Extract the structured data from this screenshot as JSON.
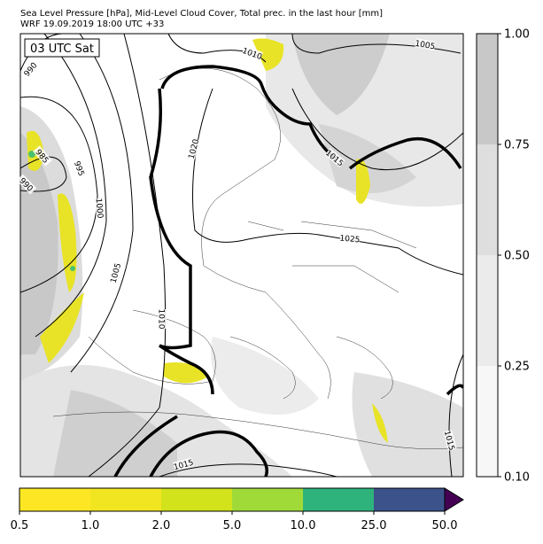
{
  "header": {
    "line1": "Sea Level Pressure [hPa], Mid-Level Cloud Cover, Total prec. in the last hour [mm]",
    "line2": "WRF 19.09.2019 18:00 UTC +33"
  },
  "map": {
    "time_label": "03 UTC Sat",
    "isobar_labels": [
      "990",
      "985",
      "995",
      "990",
      "1000",
      "1005",
      "1010",
      "1010",
      "1020",
      "1015",
      "1025",
      "1005",
      "1015",
      "1015"
    ]
  },
  "cloud_colorbar": {
    "ticks": [
      {
        "value": 0.1,
        "label": "0.10"
      },
      {
        "value": 0.25,
        "label": "0.25"
      },
      {
        "value": 0.5,
        "label": "0.50"
      },
      {
        "value": 0.75,
        "label": "0.75"
      },
      {
        "value": 1,
        "label": "1.00"
      }
    ],
    "colors": [
      "#f7f7f7",
      "#ebebeb",
      "#dedede",
      "#c8c8c8"
    ]
  },
  "precip_colorbar": {
    "ticks": [
      0.5,
      {
        "value": 1,
        "label": "1.0"
      },
      {
        "value": 2,
        "label": "2.0"
      },
      {
        "value": 5,
        "label": "5.0"
      },
      {
        "value": 10,
        "label": "10.0"
      },
      {
        "value": 25,
        "label": "25.0"
      },
      {
        "value": 50,
        "label": "50.0"
      }
    ],
    "colors": [
      "#fde725",
      "#f1e521",
      "#d2e21b",
      "#a0da39",
      "#2eb37c",
      "#3b528b"
    ],
    "extend_color": "#440154"
  }
}
